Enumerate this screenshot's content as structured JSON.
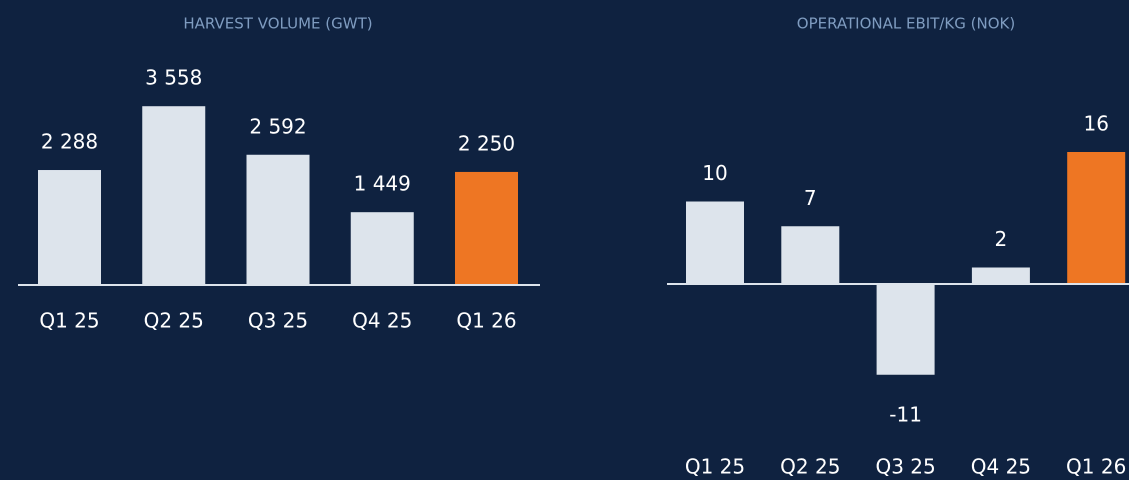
{
  "chart_data": [
    {
      "type": "bar",
      "title": "HARVEST VOLUME (GWT)",
      "categories": [
        "Q1 25",
        "Q2 25",
        "Q3 25",
        "Q4 25",
        "Q1 26"
      ],
      "values": [
        2288,
        3558,
        2592,
        1449,
        2250
      ],
      "value_labels": [
        "2 288",
        "3 558",
        "2 592",
        "1 449",
        "2 250"
      ],
      "colors": [
        "#dde4ec",
        "#dde4ec",
        "#dde4ec",
        "#dde4ec",
        "#ee7623"
      ],
      "ylim": [
        0,
        4000
      ]
    },
    {
      "type": "bar",
      "title": "OPERATIONAL EBIT/KG (NOK)",
      "categories": [
        "Q1 25",
        "Q2 25",
        "Q3 25",
        "Q4 25",
        "Q1 26"
      ],
      "values": [
        10,
        7,
        -11,
        2,
        16
      ],
      "colors": [
        "#dde4ec",
        "#dde4ec",
        "#dde4ec",
        "#dde4ec",
        "#ee7623"
      ],
      "ylim": [
        -12,
        20
      ]
    }
  ]
}
